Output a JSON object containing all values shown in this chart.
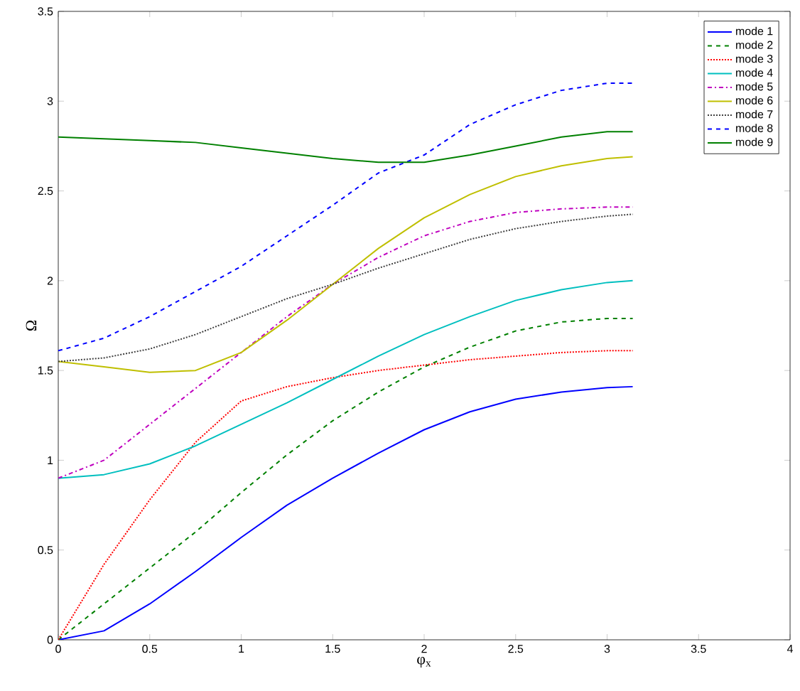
{
  "chart_data": {
    "type": "line",
    "xlabel": "φ$_{x}$",
    "ylabel": "Ω",
    "xlim": [
      0,
      4
    ],
    "ylim": [
      0,
      3.5
    ],
    "xticks": [
      0,
      0.5,
      1,
      1.5,
      2,
      2.5,
      3,
      3.5,
      4
    ],
    "yticks": [
      0,
      0.5,
      1,
      1.5,
      2,
      2.5,
      3,
      3.5
    ],
    "legend": "top right",
    "grid": false,
    "x": [
      0,
      0.25,
      0.5,
      0.75,
      1,
      1.25,
      1.5,
      1.75,
      2,
      2.25,
      2.5,
      2.75,
      3,
      3.14
    ],
    "series": [
      {
        "name": "mode 1",
        "color": "#0000ff",
        "line_style": "solid",
        "values": [
          0,
          0.05,
          0.2,
          0.38,
          0.57,
          0.75,
          0.9,
          1.04,
          1.17,
          1.27,
          1.34,
          1.38,
          1.405,
          1.41
        ]
      },
      {
        "name": "mode 2",
        "color": "#008000",
        "line_style": "dashed",
        "values": [
          0,
          0.2,
          0.4,
          0.6,
          0.82,
          1.03,
          1.22,
          1.38,
          1.52,
          1.63,
          1.72,
          1.77,
          1.79,
          1.79
        ]
      },
      {
        "name": "mode 3",
        "color": "#ff0000",
        "line_style": "dotted",
        "values": [
          0,
          0.42,
          0.78,
          1.1,
          1.33,
          1.41,
          1.46,
          1.5,
          1.53,
          1.56,
          1.58,
          1.6,
          1.61,
          1.61
        ]
      },
      {
        "name": "mode 4",
        "color": "#00bfbf",
        "line_style": "solid",
        "values": [
          0.9,
          0.92,
          0.98,
          1.08,
          1.2,
          1.32,
          1.45,
          1.58,
          1.7,
          1.8,
          1.89,
          1.95,
          1.99,
          2.0
        ]
      },
      {
        "name": "mode 5",
        "color": "#bf00bf",
        "line_style": "dashdot",
        "values": [
          0.9,
          1.0,
          1.2,
          1.4,
          1.6,
          1.8,
          1.98,
          2.13,
          2.25,
          2.33,
          2.38,
          2.4,
          2.41,
          2.41
        ]
      },
      {
        "name": "mode 6",
        "color": "#bfbf00",
        "line_style": "solid",
        "values": [
          1.55,
          1.52,
          1.49,
          1.5,
          1.6,
          1.78,
          1.98,
          2.18,
          2.35,
          2.48,
          2.58,
          2.64,
          2.68,
          2.69
        ]
      },
      {
        "name": "mode 7",
        "color": "#404040",
        "line_style": "dotted",
        "values": [
          1.55,
          1.57,
          1.62,
          1.7,
          1.8,
          1.9,
          1.98,
          2.07,
          2.15,
          2.23,
          2.29,
          2.33,
          2.36,
          2.37
        ]
      },
      {
        "name": "mode 8",
        "color": "#0000ff",
        "line_style": "dashed",
        "values": [
          1.61,
          1.68,
          1.8,
          1.94,
          2.08,
          2.25,
          2.42,
          2.6,
          2.7,
          2.87,
          2.98,
          3.06,
          3.1,
          3.1
        ]
      },
      {
        "name": "mode 9",
        "color": "#008000",
        "line_style": "solid",
        "values": [
          2.8,
          2.79,
          2.78,
          2.77,
          2.74,
          2.71,
          2.68,
          2.66,
          2.66,
          2.7,
          2.75,
          2.8,
          2.83,
          2.83
        ]
      }
    ]
  }
}
